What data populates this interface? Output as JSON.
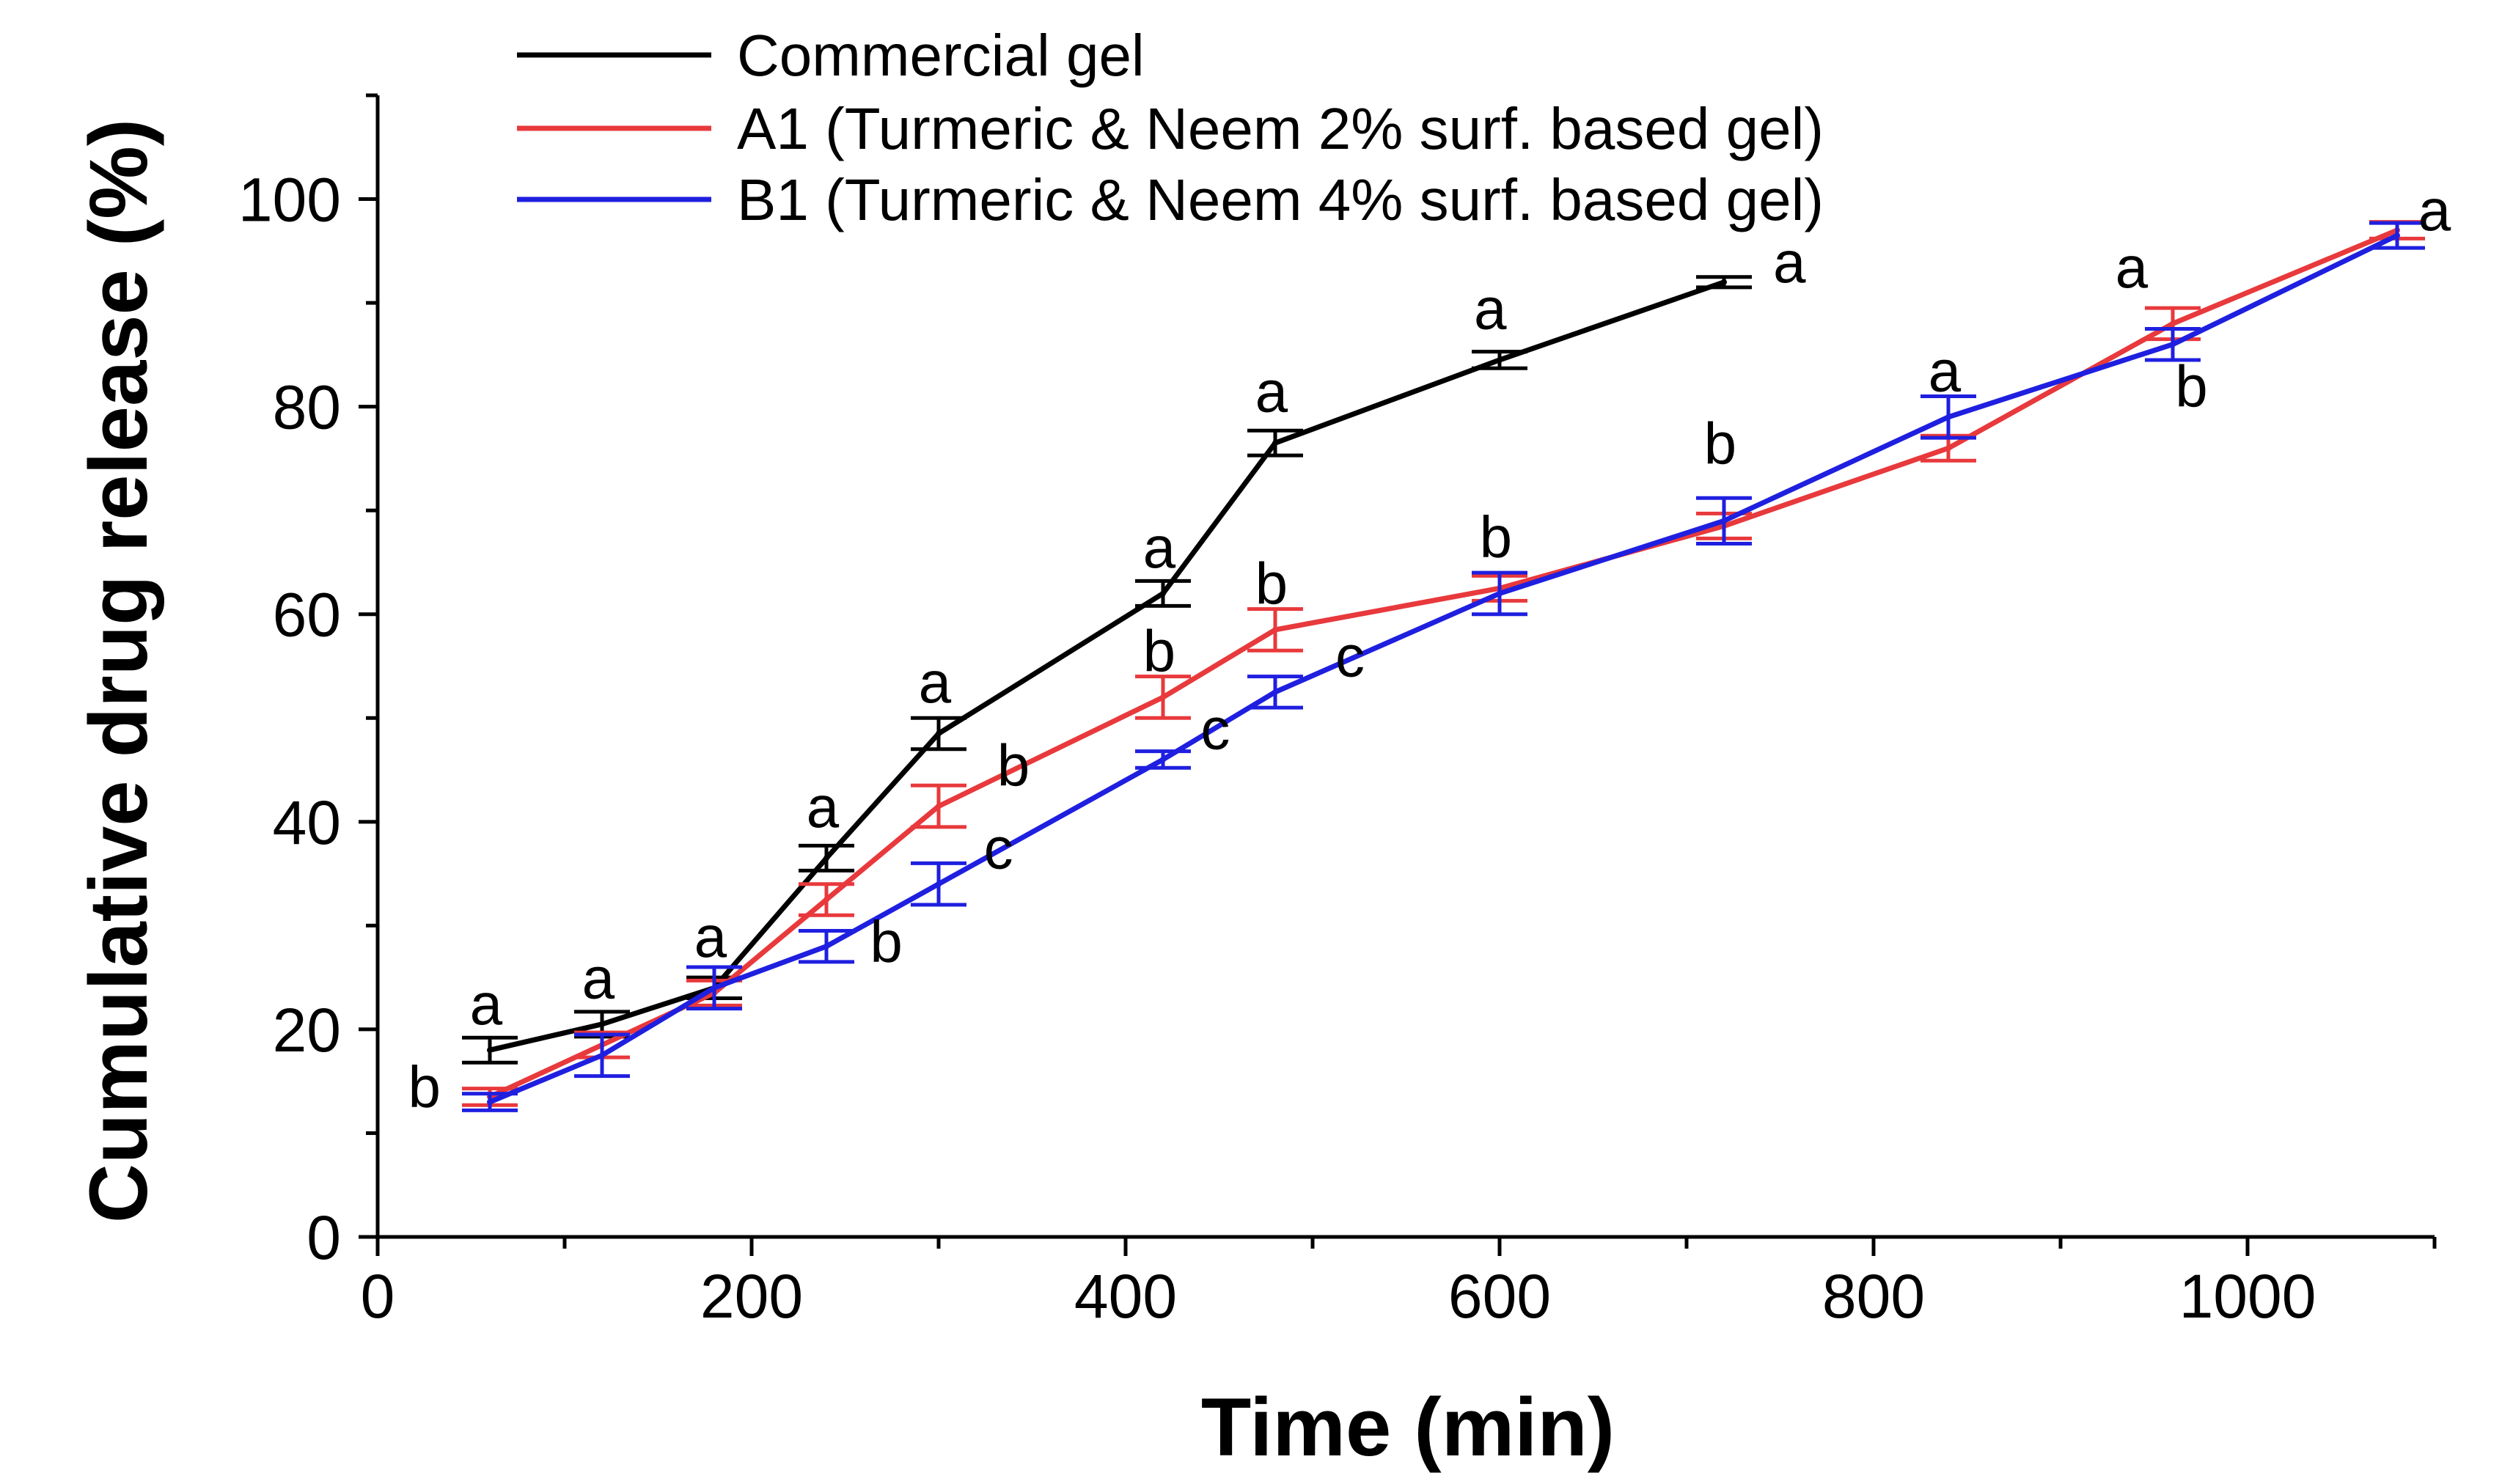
{
  "chart_data": {
    "type": "line",
    "title": "",
    "xlabel": "Time (min)",
    "ylabel": "Cumulative drug release (%)",
    "xlim": [
      0,
      1100
    ],
    "ylim": [
      0,
      110
    ],
    "xticks": [
      0,
      200,
      400,
      600,
      800,
      1000
    ],
    "yticks": [
      0,
      20,
      40,
      60,
      80,
      100
    ],
    "grid": false,
    "legend_position": "top-center",
    "series": [
      {
        "name": "Commercial gel",
        "color": "#000000",
        "x": [
          60,
          120,
          180,
          240,
          300,
          420,
          480,
          600,
          720
        ],
        "y": [
          18.0,
          20.5,
          24.0,
          36.5,
          48.5,
          62.0,
          76.5,
          84.5,
          92.0
        ],
        "err": [
          1.2,
          1.2,
          1.0,
          1.2,
          1.5,
          1.2,
          1.2,
          0.8,
          0.5
        ]
      },
      {
        "name": "A1 (Turmeric & Neem 2% surf. based gel)",
        "color": "#e8393c",
        "x": [
          60,
          120,
          180,
          240,
          300,
          420,
          480,
          600,
          720,
          840,
          960,
          1080
        ],
        "y": [
          13.5,
          18.5,
          23.5,
          32.5,
          41.5,
          52.0,
          58.5,
          62.5,
          68.5,
          76.0,
          88.0,
          97.0
        ],
        "err": [
          0.8,
          1.2,
          1.2,
          1.5,
          2.0,
          2.0,
          2.0,
          1.2,
          1.2,
          1.2,
          1.5,
          0.8
        ]
      },
      {
        "name": "B1 (Turmeric & Neem  4% surf. based gel)",
        "color": "#1f1fe0",
        "x": [
          60,
          120,
          180,
          240,
          300,
          420,
          480,
          600,
          720,
          840,
          960,
          1080
        ],
        "y": [
          13.0,
          17.5,
          24.0,
          28.0,
          34.0,
          46.0,
          52.5,
          62.0,
          69.0,
          79.0,
          86.0,
          96.5
        ],
        "err": [
          0.8,
          2.0,
          2.0,
          1.5,
          2.0,
          0.8,
          1.5,
          2.0,
          2.2,
          2.0,
          1.5,
          1.2
        ]
      }
    ],
    "annotations": [
      {
        "text": "a",
        "x": 58,
        "y": 20.5
      },
      {
        "text": "b",
        "x": 25,
        "y": 12.5
      },
      {
        "text": "a",
        "x": 118,
        "y": 23.0
      },
      {
        "text": "a",
        "x": 178,
        "y": 27.0
      },
      {
        "text": "a",
        "x": 238,
        "y": 39.5
      },
      {
        "text": "b",
        "x": 272,
        "y": 26.5
      },
      {
        "text": "a",
        "x": 298,
        "y": 51.5
      },
      {
        "text": "b",
        "x": 340,
        "y": 43.5
      },
      {
        "text": "c",
        "x": 332,
        "y": 35.5
      },
      {
        "text": "a",
        "x": 418,
        "y": 64.5
      },
      {
        "text": "b",
        "x": 418,
        "y": 54.5
      },
      {
        "text": "c",
        "x": 448,
        "y": 47.0
      },
      {
        "text": "a",
        "x": 478,
        "y": 79.5
      },
      {
        "text": "b",
        "x": 478,
        "y": 61.0
      },
      {
        "text": "c",
        "x": 520,
        "y": 54.0
      },
      {
        "text": "b",
        "x": 598,
        "y": 65.5
      },
      {
        "text": "a",
        "x": 595,
        "y": 87.5
      },
      {
        "text": "b",
        "x": 718,
        "y": 74.5
      },
      {
        "text": "a",
        "x": 755,
        "y": 92.0
      },
      {
        "text": "a",
        "x": 838,
        "y": 81.5
      },
      {
        "text": "a",
        "x": 938,
        "y": 91.5
      },
      {
        "text": "b",
        "x": 970,
        "y": 80.0
      },
      {
        "text": "a",
        "x": 1100,
        "y": 97.0
      }
    ]
  }
}
